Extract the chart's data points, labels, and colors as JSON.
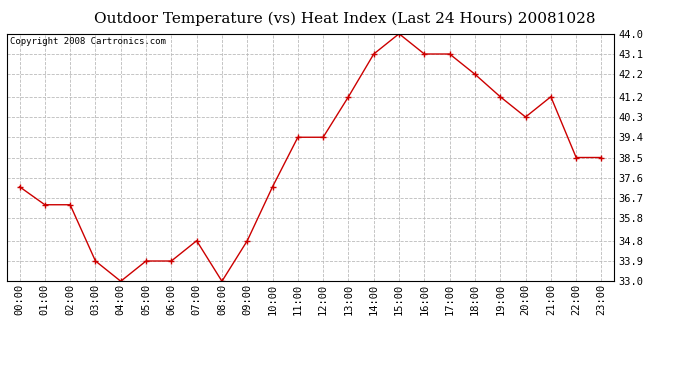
{
  "title": "Outdoor Temperature (vs) Heat Index (Last 24 Hours) 20081028",
  "copyright": "Copyright 2008 Cartronics.com",
  "x_labels": [
    "00:00",
    "01:00",
    "02:00",
    "03:00",
    "04:00",
    "05:00",
    "06:00",
    "07:00",
    "08:00",
    "09:00",
    "10:00",
    "11:00",
    "12:00",
    "13:00",
    "14:00",
    "15:00",
    "16:00",
    "17:00",
    "18:00",
    "19:00",
    "20:00",
    "21:00",
    "22:00",
    "23:00"
  ],
  "y_values": [
    37.2,
    36.4,
    36.4,
    33.9,
    33.0,
    33.9,
    33.9,
    34.8,
    33.0,
    34.8,
    37.2,
    39.4,
    39.4,
    41.2,
    43.1,
    44.0,
    43.1,
    43.1,
    42.2,
    41.2,
    40.3,
    41.2,
    38.5,
    38.5
  ],
  "line_color": "#cc0000",
  "marker": "+",
  "marker_size": 5,
  "marker_color": "#cc0000",
  "grid_color": "#bbbbbb",
  "grid_style": "--",
  "background_color": "#ffffff",
  "plot_bg_color": "#ffffff",
  "title_fontsize": 11,
  "copyright_fontsize": 6.5,
  "tick_fontsize": 7.5,
  "y_min": 33.0,
  "y_max": 44.0,
  "y_ticks": [
    33.0,
    33.9,
    34.8,
    35.8,
    36.7,
    37.6,
    38.5,
    39.4,
    40.3,
    41.2,
    42.2,
    43.1,
    44.0
  ]
}
